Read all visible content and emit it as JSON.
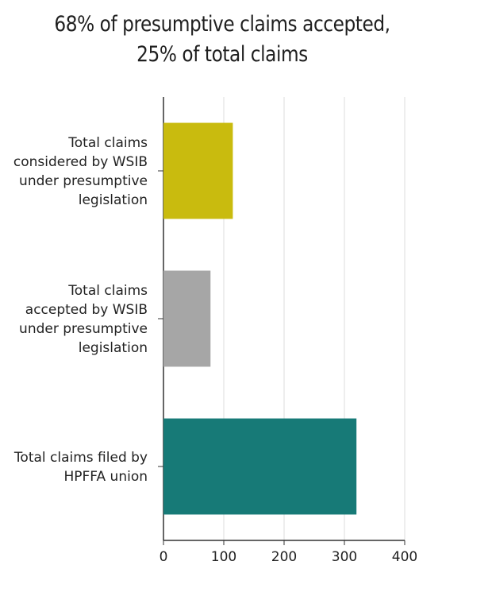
{
  "chart_data": {
    "type": "bar",
    "orientation": "horizontal",
    "title_lines": [
      "68% of presumptive claims accepted,",
      "25% of total claims"
    ],
    "categories": [
      {
        "lines": [
          "Total claims",
          "considered by WSIB",
          "under presumptive",
          "legislation"
        ],
        "value": 115,
        "color": "#c9bb0e"
      },
      {
        "lines": [
          "Total claims",
          "accepted by WSIB",
          "under presumptive",
          "legislation"
        ],
        "value": 78,
        "color": "#a6a6a6"
      },
      {
        "lines": [
          "Total claims filed by",
          "HPFFA union"
        ],
        "value": 320,
        "color": "#177a77"
      }
    ],
    "xlim": [
      0,
      400
    ],
    "xticks": [
      "0",
      "100",
      "200",
      "300",
      "400"
    ],
    "grid": true,
    "xlabel": "",
    "ylabel": ""
  }
}
